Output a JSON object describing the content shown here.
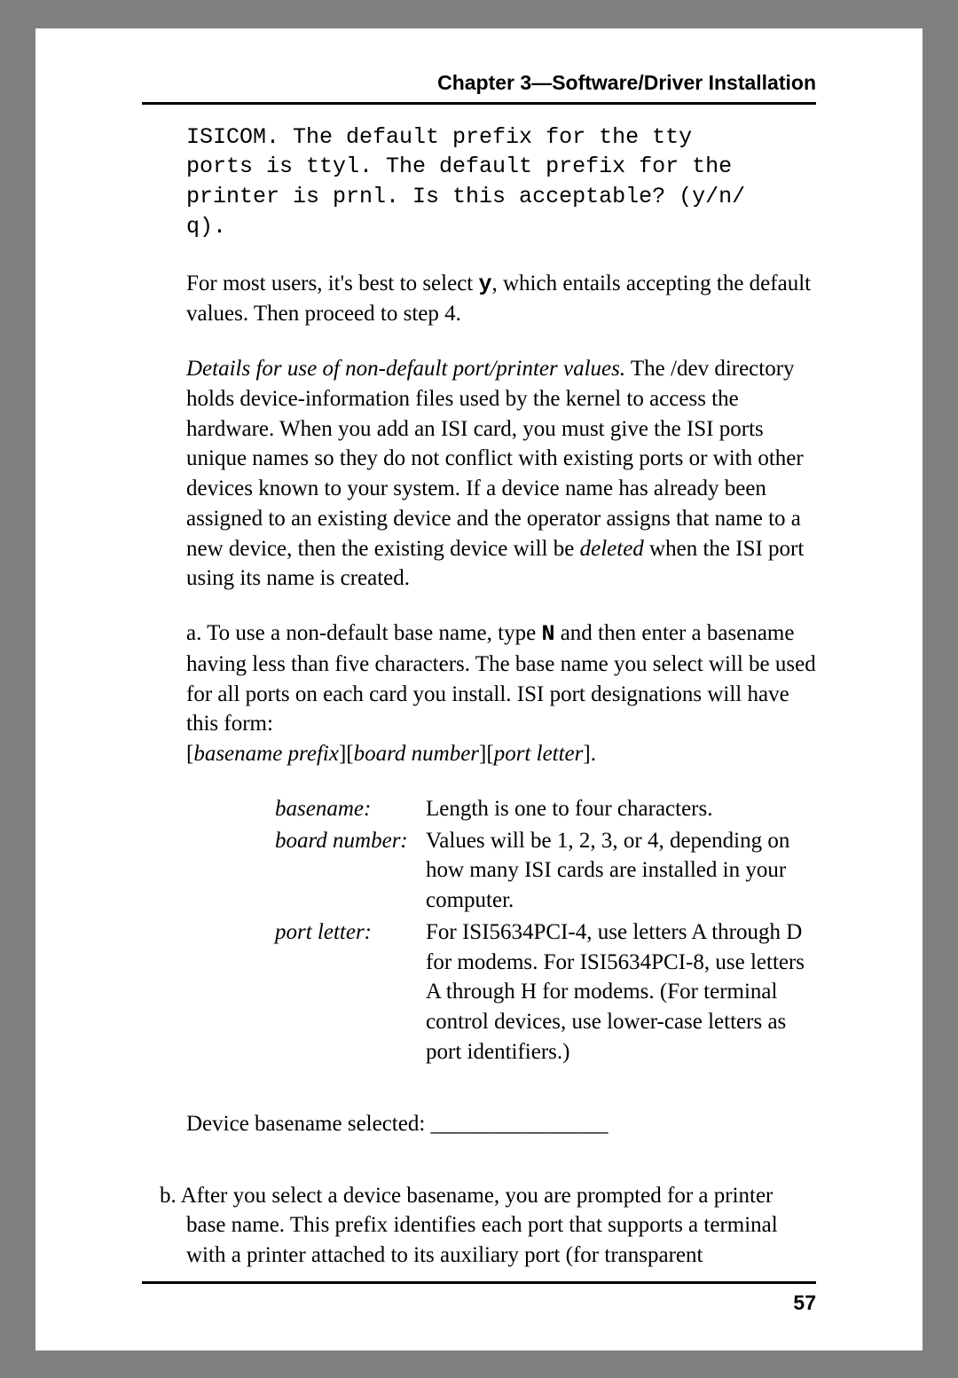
{
  "header": {
    "title": "Chapter 3—Software/Driver Installation"
  },
  "code": {
    "line1": "ISICOM.  The default prefix for the tty",
    "line2": "ports is ttyl.  The default prefix for the",
    "line3": "printer is prnl.  Is this acceptable? (y/n/",
    "line4": "q)."
  },
  "para1": {
    "part1": "For most users, it's best to select ",
    "key": "y",
    "part2": ", which entails accepting the default values.  Then proceed to step 4."
  },
  "para2": {
    "lead": "Details for use of non-default port/printer values.",
    "body": "  The /dev directory holds device-information files used by the kernel to access the hardware.  When you add an ISI card, you must give the ISI ports unique names so they do not conflict with existing ports or with other devices known to your system.  If a device name has already been assigned to an existing device and the operator assigns that name to a new device, then the existing device will be ",
    "deleted": "deleted",
    "tail": " when the ISI port using its name is created."
  },
  "para3": {
    "part1": "a. To use a non-default base name, type  ",
    "key": "N",
    "part2": " and then enter a basename having less than five characters. The base name you select will be used for all ports on each card you install. ISI port designations will have this form:"
  },
  "para3_format": {
    "b1": "[",
    "t1": "basename prefix",
    "b2": "][",
    "t2": "board number",
    "b3": "][",
    "t3": "port letter",
    "b4": "]."
  },
  "defs": {
    "basename": {
      "term": "basename:",
      "desc": "Length is one to four characters."
    },
    "boardnum": {
      "term": "board number:",
      "desc": "Values will be 1, 2, 3, or 4, depending on how many ISI cards are installed in your computer."
    },
    "portletter": {
      "term": "port letter:",
      "desc": "For ISI5634PCI-4, use letters A through D for modems.  For ISI5634PCI-8, use letters A through H for modems.  (For terminal control devices, use lower-case letters as port identifiers.)"
    }
  },
  "blank": {
    "label": "Device basename selected: ________________"
  },
  "para_b": {
    "text": "b. After you select a device basename, you are prompted for a printer base name.  This prefix identifies each port that supports a terminal with a printer attached to its auxiliary port (for transparent"
  },
  "pagenum": "57"
}
